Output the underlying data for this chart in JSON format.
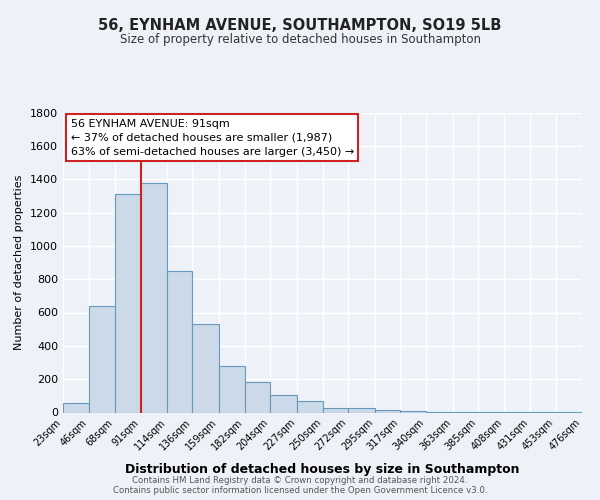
{
  "title": "56, EYNHAM AVENUE, SOUTHAMPTON, SO19 5LB",
  "subtitle": "Size of property relative to detached houses in Southampton",
  "xlabel": "Distribution of detached houses by size in Southampton",
  "ylabel": "Number of detached properties",
  "bar_color": "#ccd9e8",
  "bar_edge_color": "#6699bb",
  "background_color": "#eef2f8",
  "grid_color": "#ffffff",
  "vline_color": "#cc2222",
  "vline_x": 91,
  "annotation_line1": "56 EYNHAM AVENUE: 91sqm",
  "annotation_line2": "← 37% of detached houses are smaller (1,987)",
  "annotation_line3": "63% of semi-detached houses are larger (3,450) →",
  "footer_line1": "Contains HM Land Registry data © Crown copyright and database right 2024.",
  "footer_line2": "Contains public sector information licensed under the Open Government Licence v3.0.",
  "bin_edges": [
    23,
    46,
    68,
    91,
    114,
    136,
    159,
    182,
    204,
    227,
    250,
    272,
    295,
    317,
    340,
    363,
    385,
    408,
    431,
    453,
    476
  ],
  "bin_counts": [
    55,
    640,
    1310,
    1380,
    850,
    530,
    280,
    185,
    105,
    70,
    30,
    25,
    15,
    8,
    5,
    3,
    2,
    1,
    1,
    1
  ],
  "ylim": [
    0,
    1800
  ],
  "yticks": [
    0,
    200,
    400,
    600,
    800,
    1000,
    1200,
    1400,
    1600,
    1800
  ]
}
